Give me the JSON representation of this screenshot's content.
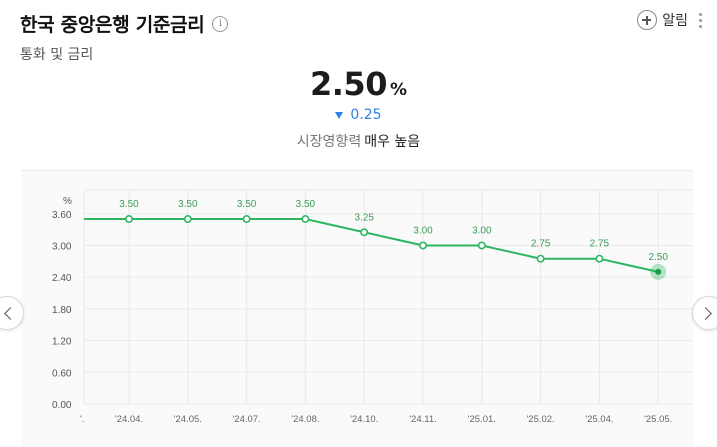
{
  "header": {
    "title": "한국 중앙은행 기준금리",
    "info_icon": "info-icon",
    "subtitle": "통화 및 금리",
    "alert_label": "알림"
  },
  "summary": {
    "value": "2.50",
    "unit": "%",
    "change": "0.25",
    "change_direction": "down",
    "influence_label": "시장영향력",
    "influence_level": "매우 높음"
  },
  "colors": {
    "line": "#2db562",
    "change": "#2f7fe6",
    "grid": "#e9e9e9"
  },
  "chart_data": {
    "type": "line",
    "y_unit_label": "%",
    "categories": [
      "'24.04.",
      "'24.05.",
      "'24.07.",
      "'24.08.",
      "'24.10.",
      "'24.11.",
      "'25.01.",
      "'25.02.",
      "'25.04.",
      "'25.05."
    ],
    "first_tick_partial": "'.",
    "values": [
      3.5,
      3.5,
      3.5,
      3.5,
      3.25,
      3.0,
      3.0,
      2.75,
      2.75,
      2.5
    ],
    "value_labels": [
      "3.50",
      "3.50",
      "3.50",
      "3.50",
      "3.25",
      "3.00",
      "3.00",
      "2.75",
      "2.75",
      "2.50"
    ],
    "line_start_value": 3.5,
    "y_ticks": [
      "0.00",
      "0.60",
      "1.20",
      "1.80",
      "2.40",
      "3.00",
      "3.60"
    ],
    "ylim": [
      0,
      4.05
    ],
    "grid": true,
    "highlight_last": true
  }
}
